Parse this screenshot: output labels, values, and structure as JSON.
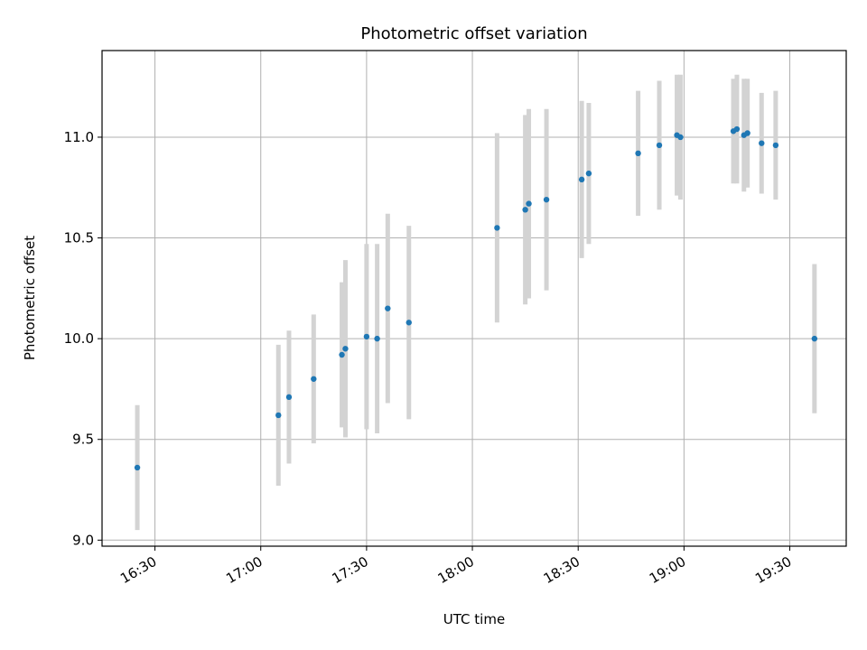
{
  "chart_data": {
    "type": "scatter",
    "title": "Photometric offset variation",
    "xlabel": "UTC time",
    "ylabel": "Photometric offset",
    "x_is_time": true,
    "xlim": [
      "16:15",
      "19:46"
    ],
    "ylim": [
      8.97,
      11.43
    ],
    "x_ticks": [
      "16:30",
      "17:00",
      "17:30",
      "18:00",
      "18:30",
      "19:00",
      "19:30"
    ],
    "y_ticks": [
      9.0,
      9.5,
      10.0,
      10.5,
      11.0
    ],
    "y_tick_labels": [
      "9.0",
      "9.5",
      "10.0",
      "10.5",
      "11.0"
    ],
    "grid": true,
    "colors": {
      "point": "#1f77b4",
      "errorbar": "#d3d3d3",
      "grid": "#b0b0b0",
      "axis": "#000000"
    },
    "points": [
      {
        "x": "16:25",
        "y": 9.36,
        "err": 0.31
      },
      {
        "x": "17:05",
        "y": 9.62,
        "err": 0.35
      },
      {
        "x": "17:08",
        "y": 9.71,
        "err": 0.33
      },
      {
        "x": "17:15",
        "y": 9.8,
        "err": 0.32
      },
      {
        "x": "17:23",
        "y": 9.92,
        "err": 0.36
      },
      {
        "x": "17:24",
        "y": 9.95,
        "err": 0.44
      },
      {
        "x": "17:30",
        "y": 10.01,
        "err": 0.46
      },
      {
        "x": "17:33",
        "y": 10.0,
        "err": 0.47
      },
      {
        "x": "17:36",
        "y": 10.15,
        "err": 0.47
      },
      {
        "x": "17:42",
        "y": 10.08,
        "err": 0.48
      },
      {
        "x": "18:07",
        "y": 10.55,
        "err": 0.47
      },
      {
        "x": "18:15",
        "y": 10.64,
        "err": 0.47
      },
      {
        "x": "18:16",
        "y": 10.67,
        "err": 0.47
      },
      {
        "x": "18:21",
        "y": 10.69,
        "err": 0.45
      },
      {
        "x": "18:31",
        "y": 10.79,
        "err": 0.39
      },
      {
        "x": "18:33",
        "y": 10.82,
        "err": 0.35
      },
      {
        "x": "18:47",
        "y": 10.92,
        "err": 0.31
      },
      {
        "x": "18:53",
        "y": 10.96,
        "err": 0.32
      },
      {
        "x": "18:58",
        "y": 11.01,
        "err": 0.3
      },
      {
        "x": "18:59",
        "y": 11.0,
        "err": 0.31
      },
      {
        "x": "19:14",
        "y": 11.03,
        "err": 0.26
      },
      {
        "x": "19:15",
        "y": 11.04,
        "err": 0.27
      },
      {
        "x": "19:17",
        "y": 11.01,
        "err": 0.28
      },
      {
        "x": "19:18",
        "y": 11.02,
        "err": 0.27
      },
      {
        "x": "19:22",
        "y": 10.97,
        "err": 0.25
      },
      {
        "x": "19:26",
        "y": 10.96,
        "err": 0.27
      },
      {
        "x": "19:37",
        "y": 10.0,
        "err": 0.37
      }
    ]
  }
}
